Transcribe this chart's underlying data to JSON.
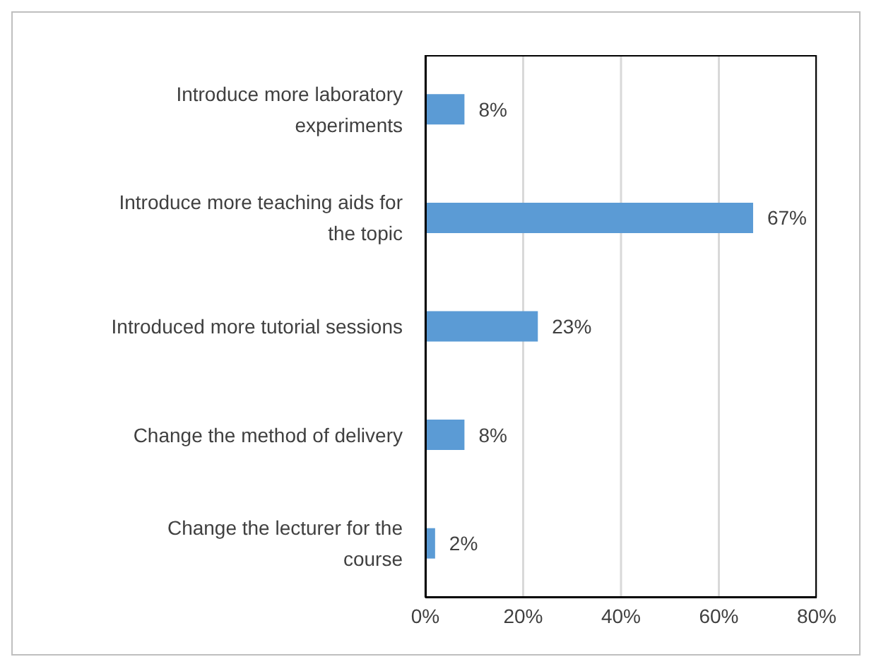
{
  "chart_data": {
    "type": "bar",
    "orientation": "horizontal",
    "categories": [
      "Introduce more laboratory experiments",
      "Introduce more teaching aids for the topic",
      "Introduced more tutorial sessions",
      "Change the method of delivery",
      "Change the lecturer for the course"
    ],
    "values": [
      8,
      67,
      23,
      8,
      2
    ],
    "value_labels": [
      "8%",
      "67%",
      "23%",
      "8%",
      "2%"
    ],
    "color": "#5b9bd5",
    "xlim": [
      0,
      80
    ],
    "xticks": [
      {
        "value": 0,
        "label": "0%"
      },
      {
        "value": 20,
        "label": "20%"
      },
      {
        "value": 40,
        "label": "40%"
      },
      {
        "value": 60,
        "label": "60%"
      },
      {
        "value": 80,
        "label": "80%"
      }
    ],
    "grid": "x"
  }
}
